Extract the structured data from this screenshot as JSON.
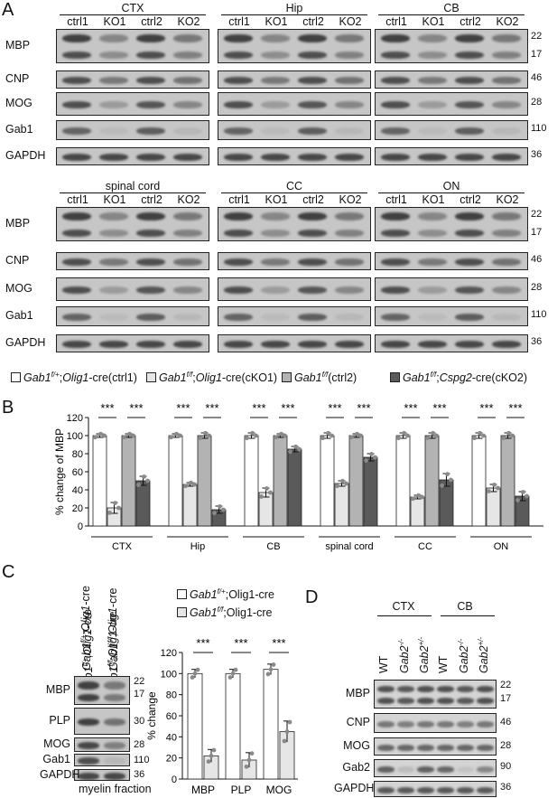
{
  "panelA": {
    "letter": "A",
    "lanes": [
      "ctrl1",
      "KO1",
      "ctrl2",
      "KO2"
    ],
    "regions_top": [
      "CTX",
      "Hip",
      "CB"
    ],
    "regions_bottom": [
      "spinal  cord",
      "CC",
      "ON"
    ],
    "proteins": [
      "MBP",
      "CNP",
      "MOG",
      "Gab1",
      "GAPDH"
    ],
    "mw_markers": [
      "22",
      "17",
      "46",
      "28",
      "110",
      "36"
    ],
    "legend": [
      {
        "gene": "Gab1",
        "sup": "f/+",
        "rest": ";",
        "driver": "Olig1",
        "tail": "-cre(ctrl1)",
        "color": "#ffffff"
      },
      {
        "gene": "Gab1",
        "sup": "f/f",
        "rest": ";",
        "driver": "Olig1",
        "tail": "-cre(cKO1)",
        "color": "#e6e6e6"
      },
      {
        "gene": "Gab1",
        "sup": "f/f",
        "rest": "",
        "driver": "",
        "tail": "(ctrl2)",
        "color": "#b3b3b3"
      },
      {
        "gene": "Gab1",
        "sup": "f/f",
        "rest": ";",
        "driver": "Cspg2",
        "tail": "-cre(cKO2)",
        "color": "#5a5a5a"
      }
    ]
  },
  "panelB": {
    "letter": "B",
    "ylabel": "% change of MBP",
    "yticks": [
      "0",
      "20",
      "40",
      "60",
      "80",
      "100",
      "120"
    ],
    "sig": "***",
    "chart_data": {
      "type": "bar",
      "categories": [
        "CTX",
        "Hip",
        "CB",
        "spinal cord",
        "CC",
        "ON"
      ],
      "ylim": [
        0,
        120
      ],
      "series": [
        {
          "name": "Gab1f/+;Olig1-cre(ctrl1)",
          "values": [
            100,
            100,
            100,
            100,
            100,
            100
          ],
          "errors": [
            2,
            2,
            3,
            3,
            3,
            3
          ],
          "color": "#ffffff"
        },
        {
          "name": "Gab1f/f;Olig1-cre(cKO1)",
          "values": [
            20,
            46,
            37,
            47,
            32,
            42
          ],
          "errors": [
            6,
            2,
            5,
            3,
            2,
            4
          ],
          "color": "#e6e6e6"
        },
        {
          "name": "Gab1f/f(ctrl2)",
          "values": [
            100,
            100,
            100,
            100,
            100,
            100
          ],
          "errors": [
            2,
            3,
            2,
            2,
            3,
            3
          ],
          "color": "#b3b3b3"
        },
        {
          "name": "Gab1f/f;Cspg2-cre(cKO2)",
          "values": [
            50,
            18,
            85,
            76,
            51,
            33
          ],
          "errors": [
            5,
            4,
            3,
            4,
            7,
            5
          ],
          "color": "#5a5a5a"
        }
      ]
    }
  },
  "panelC": {
    "letter": "C",
    "lane_labels": [
      {
        "gene": "Gab1",
        "sup": "f/+",
        "driver": "Olig1",
        "tail": "-cre"
      },
      {
        "gene": "Gab1",
        "sup": "f/f",
        "driver": "Olig1",
        "tail": "-cre"
      }
    ],
    "proteins": [
      "MBP",
      "PLP",
      "MOG",
      "Gab1",
      "GAPDH"
    ],
    "mw_markers": [
      "22",
      "17",
      "30",
      "28",
      "110",
      "36"
    ],
    "footer": "myelin fraction",
    "legend": [
      {
        "gene": "Gab1",
        "sup": "f/+",
        "tail": ";Olig1-cre",
        "color": "#ffffff"
      },
      {
        "gene": "Gab1",
        "sup": "f/f",
        "tail": ";Olig1-cre",
        "color": "#e6e6e6"
      }
    ],
    "ylabel": "% change",
    "yticks": [
      "0",
      "20",
      "40",
      "60",
      "80",
      "100",
      "120"
    ],
    "sig": "***",
    "chart_data": {
      "type": "bar",
      "categories": [
        "MBP",
        "PLP",
        "MOG"
      ],
      "ylim": [
        0,
        120
      ],
      "series": [
        {
          "name": "Gab1f/+;Olig1-cre",
          "values": [
            100,
            100,
            104
          ],
          "errors": [
            4,
            4,
            5
          ],
          "color": "#ffffff"
        },
        {
          "name": "Gab1f/f;Olig1-cre",
          "values": [
            22,
            18,
            45
          ],
          "errors": [
            6,
            7,
            10
          ],
          "color": "#e6e6e6"
        }
      ]
    }
  },
  "panelD": {
    "letter": "D",
    "regions": [
      "CTX",
      "CB"
    ],
    "lanes": [
      {
        "txt": "WT",
        "sup": ""
      },
      {
        "txt": "Gab2",
        "sup": "-/-"
      },
      {
        "txt": "Gab2",
        "sup": "+/-"
      },
      {
        "txt": "WT",
        "sup": ""
      },
      {
        "txt": "Gab2",
        "sup": "-/-"
      },
      {
        "txt": "Gab2",
        "sup": "+/-"
      }
    ],
    "proteins": [
      "MBP",
      "CNP",
      "MOG",
      "Gab2",
      "GAPDH"
    ],
    "mw_markers": [
      "22",
      "17",
      "46",
      "28",
      "90",
      "36"
    ]
  }
}
